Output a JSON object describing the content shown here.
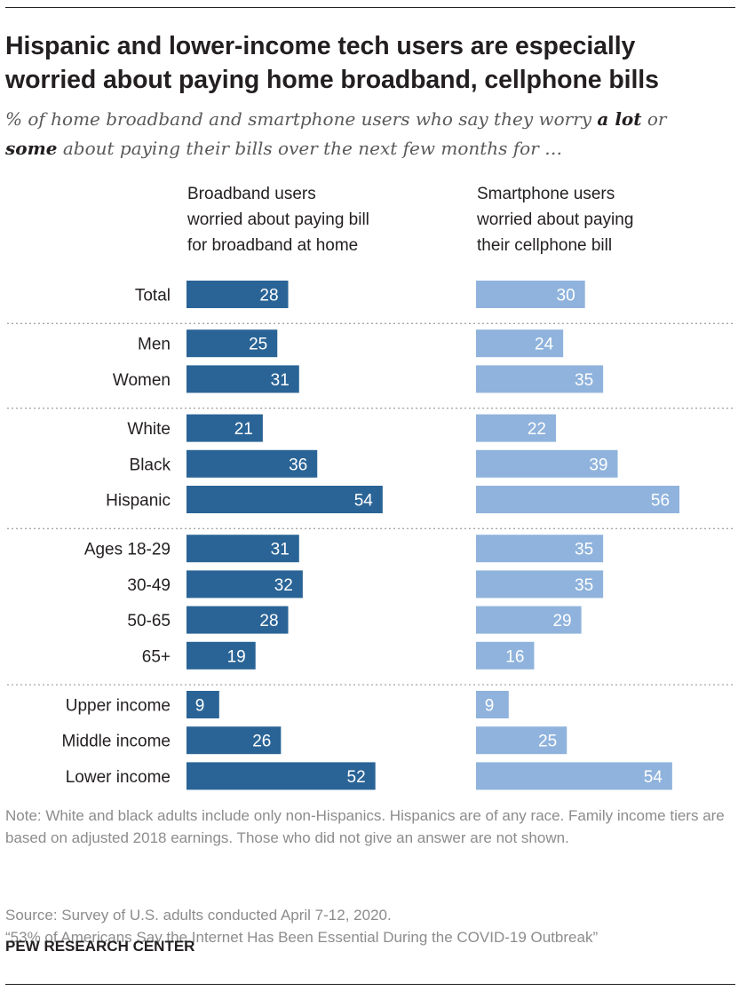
{
  "title_line1": "Hispanic and lower-income tech users are especially",
  "title_line2": "worried about paying home broadband, cellphone bills",
  "subtitle": {
    "part1": "% of home broadband and smartphone users who say they worry ",
    "emph1": "a lot",
    "part2": " or",
    "emph2": "some",
    "part3": " about paying their bills over the next few months for …"
  },
  "columns": {
    "left": [
      "Broadband users",
      "worried about paying bill",
      "for broadband at home"
    ],
    "right": [
      "Smartphone users",
      "worried about paying",
      "their cellphone bill"
    ]
  },
  "chart_data": {
    "type": "bar",
    "orientation": "horizontal",
    "categories": [
      "Total",
      "Men",
      "Women",
      "White",
      "Black",
      "Hispanic",
      "Ages 18-29",
      "30-49",
      "50-65",
      "65+",
      "Upper income",
      "Middle income",
      "Lower income"
    ],
    "groups": [
      [
        0
      ],
      [
        1,
        2
      ],
      [
        3,
        4,
        5
      ],
      [
        6,
        7,
        8,
        9
      ],
      [
        10,
        11,
        12
      ]
    ],
    "series": [
      {
        "name": "Broadband users worried about paying bill for broadband at home",
        "color": "#2a6496",
        "values": [
          28,
          25,
          31,
          21,
          36,
          54,
          31,
          32,
          28,
          19,
          9,
          26,
          52
        ]
      },
      {
        "name": "Smartphone users worried about paying their cellphone bill",
        "color": "#8fb3dc",
        "values": [
          30,
          24,
          35,
          22,
          39,
          56,
          35,
          35,
          29,
          16,
          9,
          25,
          54
        ]
      }
    ],
    "data_labels": true,
    "grid": false
  },
  "notes": {
    "note": "Note: White and black adults include only non-Hispanics. Hispanics are of any race. Family income tiers are based on adjusted 2018 earnings. Those who did not give an answer are not shown.",
    "source": "Source: Survey of U.S. adults conducted April 7-12, 2020.",
    "report": "“53% of Americans Say the Internet Has Been Essential During the COVID-19 Outbreak”"
  },
  "brand": "PEW RESEARCH CENTER",
  "colors": {
    "label_text": "#ffffff",
    "divider": "#a6a6a6"
  }
}
